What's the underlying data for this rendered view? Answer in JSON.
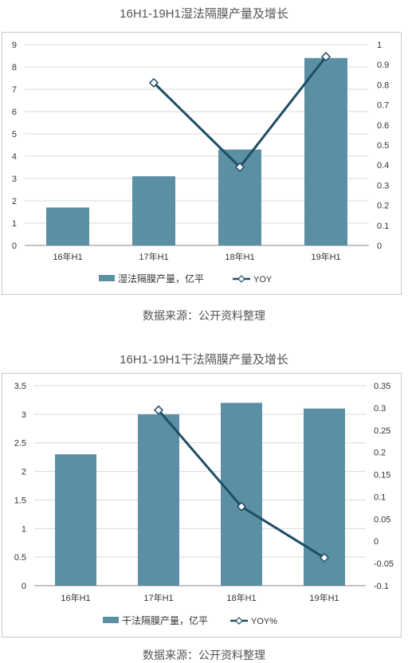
{
  "chart_data": [
    {
      "type": "bar",
      "title": "16H1-19H1湿法隔膜产量及增长",
      "categories": [
        "16年H1",
        "17年H1",
        "18年H1",
        "19年H1"
      ],
      "series": [
        {
          "name": "湿法隔膜产量，亿平",
          "type": "bar",
          "axis": "left",
          "values": [
            1.7,
            3.1,
            4.3,
            8.4
          ]
        },
        {
          "name": "YOY",
          "type": "line",
          "axis": "right",
          "values": [
            null,
            0.81,
            0.39,
            0.94
          ]
        }
      ],
      "ylim": [
        0,
        9
      ],
      "yticks": [
        "0",
        "1",
        "2",
        "3",
        "4",
        "5",
        "6",
        "7",
        "8",
        "9"
      ],
      "y2lim": [
        0,
        1
      ],
      "y2ticks": [
        "0",
        "0.1",
        "0.2",
        "0.3",
        "0.4",
        "0.5",
        "0.6",
        "0.7",
        "0.8",
        "0.9",
        "1"
      ],
      "legend_position": "bottom",
      "bar_color": "#5b8fa3",
      "line_color": "#1f4e66",
      "source": "数据来源：公开资料整理"
    },
    {
      "type": "bar",
      "title": "16H1-19H1干法隔膜产量及增长",
      "categories": [
        "16年H1",
        "17年H1",
        "18年H1",
        "19年H1"
      ],
      "series": [
        {
          "name": "干法隔膜产量，亿平",
          "type": "bar",
          "axis": "left",
          "values": [
            2.3,
            3.0,
            3.2,
            3.1
          ]
        },
        {
          "name": "YOY%",
          "type": "line",
          "axis": "right",
          "values": [
            null,
            0.295,
            0.078,
            -0.037
          ]
        }
      ],
      "ylim": [
        0,
        3.5
      ],
      "yticks": [
        "0",
        "0.5",
        "1",
        "1.5",
        "2",
        "2.5",
        "3",
        "3.5"
      ],
      "y2lim": [
        -0.1,
        0.35
      ],
      "y2ticks": [
        "-0.1",
        "-0.05",
        "0",
        "0.05",
        "0.1",
        "0.15",
        "0.2",
        "0.25",
        "0.3",
        "0.35"
      ],
      "legend_position": "bottom",
      "bar_color": "#5b8fa3",
      "line_color": "#1f4e66",
      "source": "数据来源：公开资料整理"
    }
  ]
}
